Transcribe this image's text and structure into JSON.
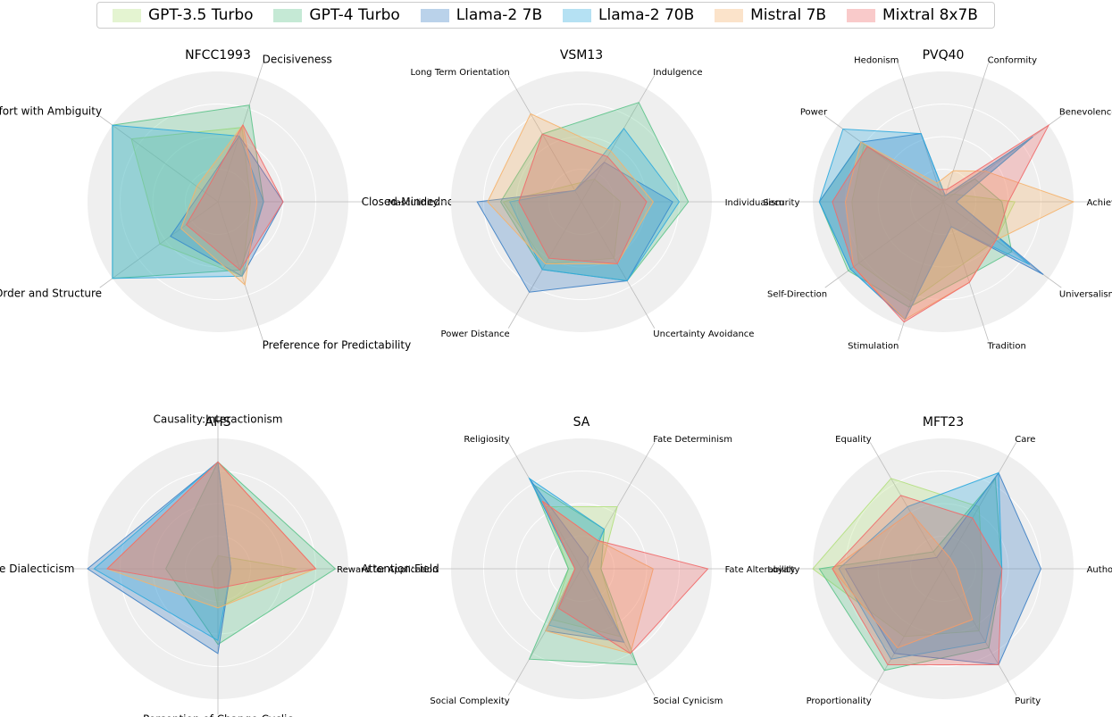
{
  "legend": [
    {
      "name": "GPT-3.5 Turbo",
      "color": "#b3e07d"
    },
    {
      "name": "GPT-4 Turbo",
      "color": "#5cc38a"
    },
    {
      "name": "Llama-2 7B",
      "color": "#3d7fc4"
    },
    {
      "name": "Llama-2 70B",
      "color": "#2eaade"
    },
    {
      "name": "Mistral 7B",
      "color": "#f5b26b"
    },
    {
      "name": "Mixtral 8x7B",
      "color": "#ef6a6a"
    }
  ],
  "chart_data": [
    {
      "type": "radar",
      "title": "NFCC1993",
      "rmax": 1,
      "axes": [
        "Closed-Mindedness",
        "Decisiveness",
        "Discomfort with Ambiguity",
        "Preference for Order and Structure",
        "Preference for Predictability"
      ],
      "series": [
        {
          "name": "GPT-3.5 Turbo",
          "values": [
            0.25,
            0.6,
            0.82,
            0.55,
            0.6
          ]
        },
        {
          "name": "GPT-4 Turbo",
          "values": [
            0.35,
            0.78,
            1.0,
            1.0,
            0.55
          ]
        },
        {
          "name": "Llama-2 7B",
          "values": [
            0.5,
            0.53,
            0.15,
            0.45,
            0.6
          ]
        },
        {
          "name": "Llama-2 70B",
          "values": [
            0.35,
            0.53,
            1.0,
            1.0,
            0.6
          ]
        },
        {
          "name": "Mistral 7B",
          "values": [
            0.3,
            0.62,
            0.2,
            0.35,
            0.67
          ]
        },
        {
          "name": "Mixtral 8x7B",
          "values": [
            0.5,
            0.62,
            0.12,
            0.3,
            0.55
          ]
        }
      ]
    },
    {
      "type": "radar",
      "title": "VSM13",
      "rmax": 1,
      "axes": [
        "Individualism",
        "Indulgence",
        "Long Term Orientation",
        "Masculinity",
        "Power Distance",
        "Uncertainty Avoidance"
      ],
      "series": [
        {
          "name": "GPT-3.5 Turbo",
          "values": [
            0.3,
            0.2,
            0.15,
            0.6,
            0.55,
            0.5
          ]
        },
        {
          "name": "GPT-4 Turbo",
          "values": [
            0.82,
            0.88,
            0.6,
            0.62,
            0.6,
            0.7
          ]
        },
        {
          "name": "Llama-2 7B",
          "values": [
            0.7,
            0.35,
            0.1,
            0.8,
            0.8,
            0.7
          ]
        },
        {
          "name": "Llama-2 70B",
          "values": [
            0.75,
            0.65,
            0.1,
            0.55,
            0.6,
            0.7
          ]
        },
        {
          "name": "Mistral 7B",
          "values": [
            0.55,
            0.45,
            0.78,
            0.72,
            0.55,
            0.55
          ]
        },
        {
          "name": "Mixtral 8x7B",
          "values": [
            0.5,
            0.4,
            0.6,
            0.48,
            0.5,
            0.55
          ]
        }
      ]
    },
    {
      "type": "radar",
      "title": "PVQ40",
      "rmax": 1,
      "axes": [
        "Achievement",
        "Benevolence",
        "Conformity",
        "Hedonism",
        "Power",
        "Security",
        "Self-Direction",
        "Stimulation",
        "Tradition",
        "Universalism"
      ],
      "series": [
        {
          "name": "GPT-3.5 Turbo",
          "values": [
            0.55,
            0.1,
            0.05,
            0.1,
            0.75,
            0.7,
            0.8,
            0.8,
            0.5,
            0.5
          ]
        },
        {
          "name": "GPT-4 Turbo",
          "values": [
            0.45,
            0.3,
            0.05,
            0.05,
            0.78,
            0.95,
            0.9,
            0.85,
            0.6,
            0.65
          ]
        },
        {
          "name": "Llama-2 7B",
          "values": [
            0.1,
            0.85,
            0.05,
            0.55,
            0.78,
            0.95,
            0.88,
            0.95,
            0.2,
            0.95
          ]
        },
        {
          "name": "Llama-2 70B",
          "values": [
            0.1,
            0.85,
            0.05,
            0.55,
            0.95,
            0.95,
            0.88,
            0.95,
            0.2,
            0.82
          ]
        },
        {
          "name": "Mistral 7B",
          "values": [
            1.0,
            0.4,
            0.25,
            0.15,
            0.78,
            0.75,
            0.85,
            0.95,
            0.65,
            0.5
          ]
        },
        {
          "name": "Mixtral 8x7B",
          "values": [
            0.5,
            1.0,
            0.1,
            0.1,
            0.72,
            0.85,
            0.85,
            0.97,
            0.65,
            0.5
          ]
        }
      ]
    },
    {
      "type": "radar",
      "title": "AHS",
      "rmax": 1,
      "axes": [
        "Attention:Field",
        "Causality:Interactionism",
        "Contradiction:Naive Dialecticism",
        "Perception of Change:Cyclic"
      ],
      "series": [
        {
          "name": "GPT-3.5 Turbo",
          "values": [
            0.6,
            0.1,
            0.05,
            0.3
          ]
        },
        {
          "name": "GPT-4 Turbo",
          "values": [
            0.9,
            0.82,
            0.4,
            0.58
          ]
        },
        {
          "name": "Llama-2 7B",
          "values": [
            0.1,
            0.82,
            1.0,
            0.65
          ]
        },
        {
          "name": "Llama-2 70B",
          "values": [
            0.1,
            0.82,
            0.95,
            0.55
          ]
        },
        {
          "name": "Mistral 7B",
          "values": [
            0.75,
            0.82,
            0.85,
            0.3
          ]
        },
        {
          "name": "Mixtral 8x7B",
          "values": [
            0.75,
            0.82,
            0.85,
            0.15
          ]
        }
      ]
    },
    {
      "type": "radar",
      "title": "SA",
      "rmax": 1,
      "axes": [
        "Fate Alterability",
        "Fate Determinism",
        "Religiosity",
        "Reward for Application",
        "Social Complexity",
        "Social Cynicism"
      ],
      "series": [
        {
          "name": "GPT-3.5 Turbo",
          "values": [
            0.15,
            0.55,
            0.55,
            0.1,
            0.45,
            0.6
          ]
        },
        {
          "name": "GPT-4 Turbo",
          "values": [
            0.15,
            0.35,
            0.75,
            0.1,
            0.8,
            0.85
          ]
        },
        {
          "name": "Llama-2 7B",
          "values": [
            0.05,
            0.1,
            0.8,
            0.05,
            0.55,
            0.65
          ]
        },
        {
          "name": "Llama-2 70B",
          "values": [
            0.05,
            0.35,
            0.8,
            0.05,
            0.5,
            0.65
          ]
        },
        {
          "name": "Mistral 7B",
          "values": [
            0.55,
            0.25,
            0.6,
            0.05,
            0.55,
            0.75
          ]
        },
        {
          "name": "Mixtral 8x7B",
          "values": [
            0.97,
            0.25,
            0.6,
            0.05,
            0.35,
            0.75
          ]
        }
      ]
    },
    {
      "type": "radar",
      "title": "MFT23",
      "rmax": 1,
      "axes": [
        "Authority",
        "Care",
        "Equality",
        "Loyalty",
        "Proportionality",
        "Purity"
      ],
      "series": [
        {
          "name": "GPT-3.5 Turbo",
          "values": [
            0.3,
            0.55,
            0.8,
            1.0,
            0.6,
            0.55
          ]
        },
        {
          "name": "GPT-4 Turbo",
          "values": [
            0.45,
            0.8,
            0.15,
            0.95,
            0.9,
            0.7
          ]
        },
        {
          "name": "Llama-2 7B",
          "values": [
            0.75,
            0.85,
            0.1,
            0.75,
            0.75,
            0.85
          ]
        },
        {
          "name": "Llama-2 70B",
          "values": [
            0.45,
            0.85,
            0.55,
            0.8,
            0.8,
            0.65
          ]
        },
        {
          "name": "Mistral 7B",
          "values": [
            0.1,
            0.1,
            0.5,
            0.85,
            0.7,
            0.45
          ]
        },
        {
          "name": "Mixtral 8x7B",
          "values": [
            0.45,
            0.45,
            0.65,
            0.85,
            0.85,
            0.85
          ]
        }
      ]
    }
  ]
}
